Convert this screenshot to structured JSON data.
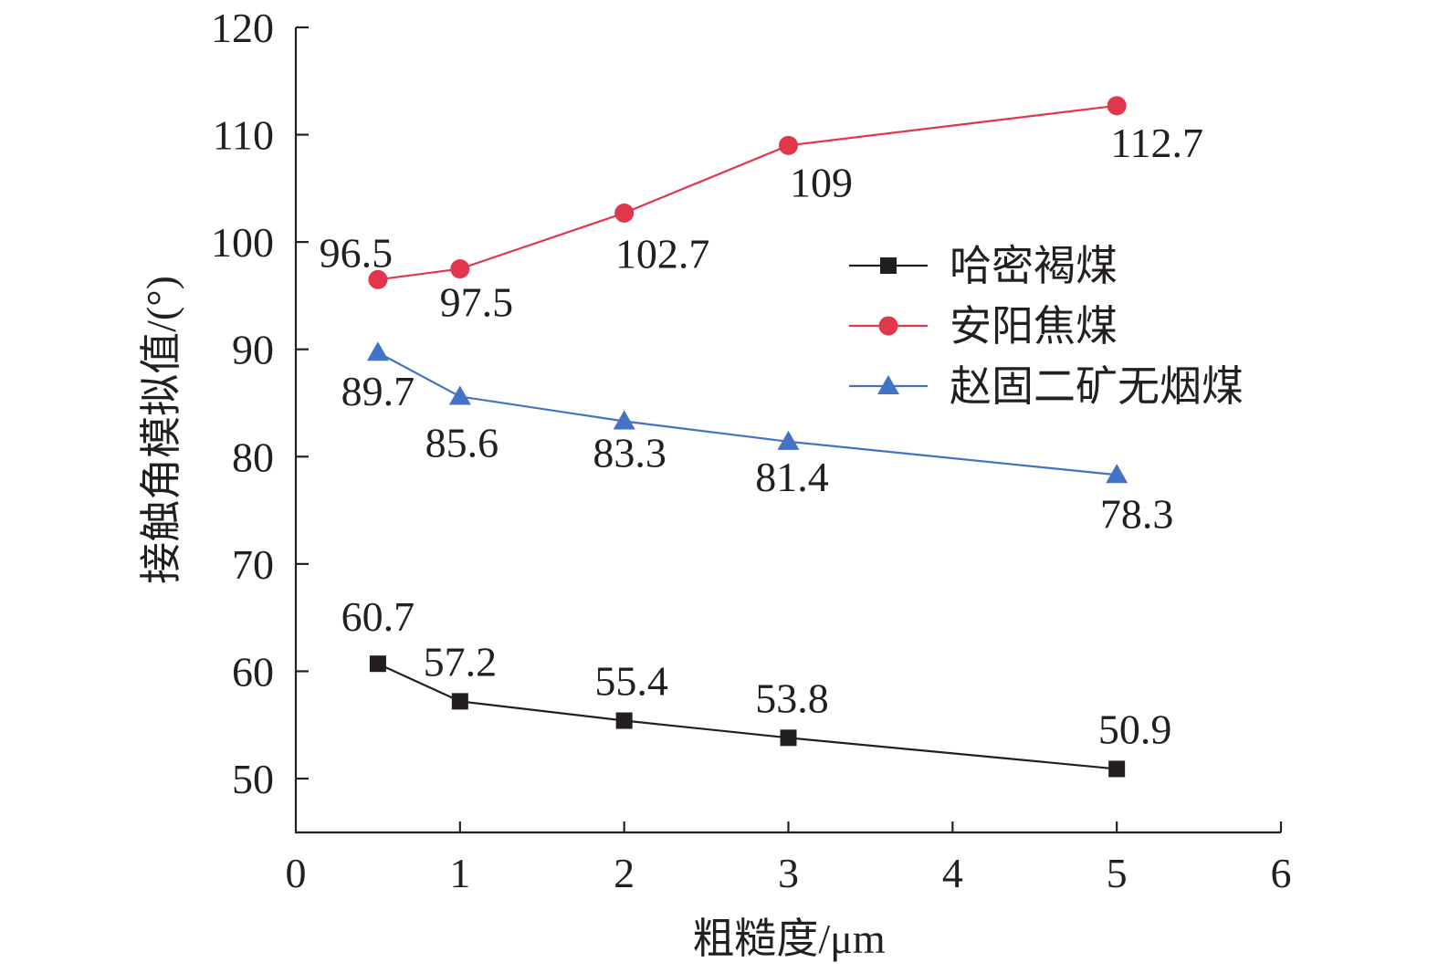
{
  "chart_data": {
    "type": "line",
    "xlabel": "粗糙度/μm",
    "ylabel": "接触角模拟值/(°)",
    "xlim": [
      0,
      6
    ],
    "ylim": [
      45,
      120
    ],
    "xticks": [
      0,
      1,
      2,
      3,
      4,
      5,
      6
    ],
    "yticks": [
      50,
      60,
      70,
      80,
      90,
      100,
      110,
      120
    ],
    "grid": false,
    "legend_position": "right-middle",
    "x": [
      0.5,
      1,
      2,
      3,
      5
    ],
    "series": [
      {
        "name": "哈密褐煤",
        "values": [
          60.7,
          57.2,
          55.4,
          53.8,
          50.9
        ],
        "labels": [
          "60.7",
          "57.2",
          "55.4",
          "53.8",
          "50.9"
        ],
        "color": "#231f20",
        "marker": "square"
      },
      {
        "name": "安阳焦煤",
        "values": [
          96.5,
          97.5,
          102.7,
          109,
          112.7
        ],
        "labels": [
          "96.5",
          "97.5",
          "102.7",
          "109",
          "112.7"
        ],
        "color": "#e0374a",
        "marker": "circle"
      },
      {
        "name": "赵固二矿无烟煤",
        "values": [
          89.7,
          85.6,
          83.3,
          81.4,
          78.3
        ],
        "labels": [
          "89.7",
          "85.6",
          "83.3",
          "81.4",
          "78.3"
        ],
        "color": "#4472c4",
        "marker": "triangle"
      }
    ]
  }
}
